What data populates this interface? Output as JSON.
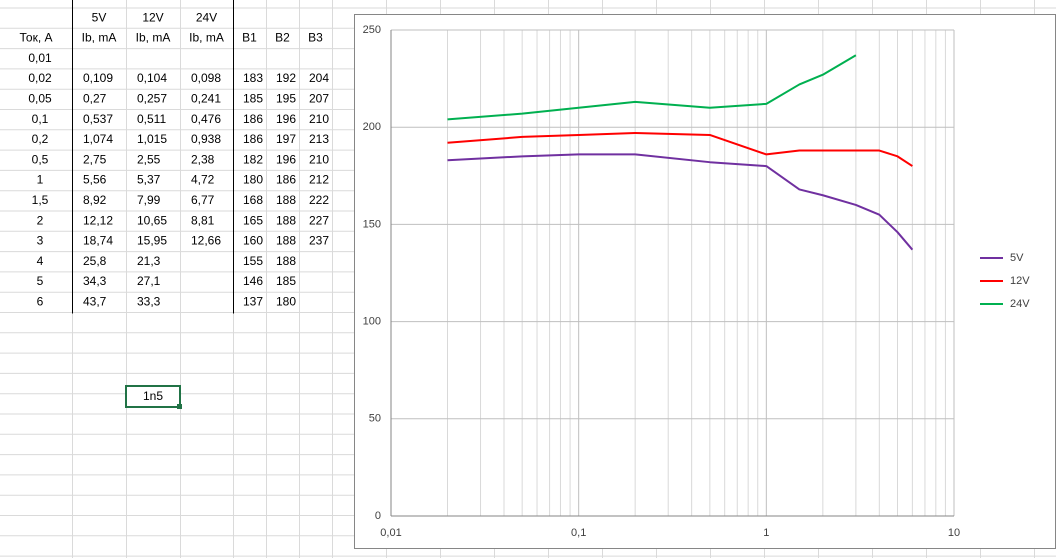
{
  "table": {
    "top_headers": [
      "5V",
      "12V",
      "24V"
    ],
    "headers": [
      "Ток, А",
      "Ib, mA",
      "Ib, mA",
      "Ib, mA",
      "B1",
      "B2",
      "B3"
    ],
    "rows": [
      [
        "0,01",
        null,
        null,
        null,
        null,
        null,
        null
      ],
      [
        "0,02",
        "0,109",
        "0,104",
        "0,098",
        "183",
        "192",
        "204"
      ],
      [
        "0,05",
        "0,27",
        "0,257",
        "0,241",
        "185",
        "195",
        "207"
      ],
      [
        "0,1",
        "0,537",
        "0,511",
        "0,476",
        "186",
        "196",
        "210"
      ],
      [
        "0,2",
        "1,074",
        "1,015",
        "0,938",
        "186",
        "197",
        "213"
      ],
      [
        "0,5",
        "2,75",
        "2,55",
        "2,38",
        "182",
        "196",
        "210"
      ],
      [
        "1",
        "5,56",
        "5,37",
        "4,72",
        "180",
        "186",
        "212"
      ],
      [
        "1,5",
        "8,92",
        "7,99",
        "6,77",
        "168",
        "188",
        "222"
      ],
      [
        "2",
        "12,12",
        "10,65",
        "8,81",
        "165",
        "188",
        "227"
      ],
      [
        "3",
        "18,74",
        "15,95",
        "12,66",
        "160",
        "188",
        "237"
      ],
      [
        "4",
        "25,8",
        "21,3",
        null,
        "155",
        "188",
        null
      ],
      [
        "5",
        "34,3",
        "27,1",
        null,
        "146",
        "185",
        null
      ],
      [
        "6",
        "43,7",
        "33,3",
        null,
        "137",
        "180",
        null
      ]
    ]
  },
  "selected_cell": "1n5",
  "chart_data": {
    "type": "line",
    "x_scale": "log",
    "grid": true,
    "minor_grid": true,
    "legend": "right",
    "xlim": [
      0.01,
      10
    ],
    "xticks": [
      {
        "value": 0.01,
        "label": "0,01"
      },
      {
        "value": 0.1,
        "label": "0,1"
      },
      1,
      10
    ],
    "ylim": [
      0,
      250
    ],
    "yticks": [
      0,
      50,
      100,
      150,
      200,
      250
    ],
    "series": [
      {
        "name": "5V",
        "color": "#7030a0",
        "x": [
          0.02,
          0.05,
          0.1,
          0.2,
          0.5,
          1,
          1.5,
          2,
          3,
          4,
          5,
          6
        ],
        "values": [
          183,
          185,
          186,
          186,
          182,
          180,
          168,
          165,
          160,
          155,
          146,
          137
        ]
      },
      {
        "name": "12V",
        "color": "#ff0000",
        "x": [
          0.02,
          0.05,
          0.1,
          0.2,
          0.5,
          1,
          1.5,
          2,
          3,
          4,
          5,
          6
        ],
        "values": [
          192,
          195,
          196,
          197,
          196,
          186,
          188,
          188,
          188,
          188,
          185,
          180
        ]
      },
      {
        "name": "24V",
        "color": "#00b050",
        "x": [
          0.02,
          0.05,
          0.1,
          0.2,
          0.5,
          1,
          1.5,
          2,
          3
        ],
        "values": [
          204,
          207,
          210,
          213,
          210,
          212,
          222,
          227,
          237
        ]
      }
    ]
  }
}
